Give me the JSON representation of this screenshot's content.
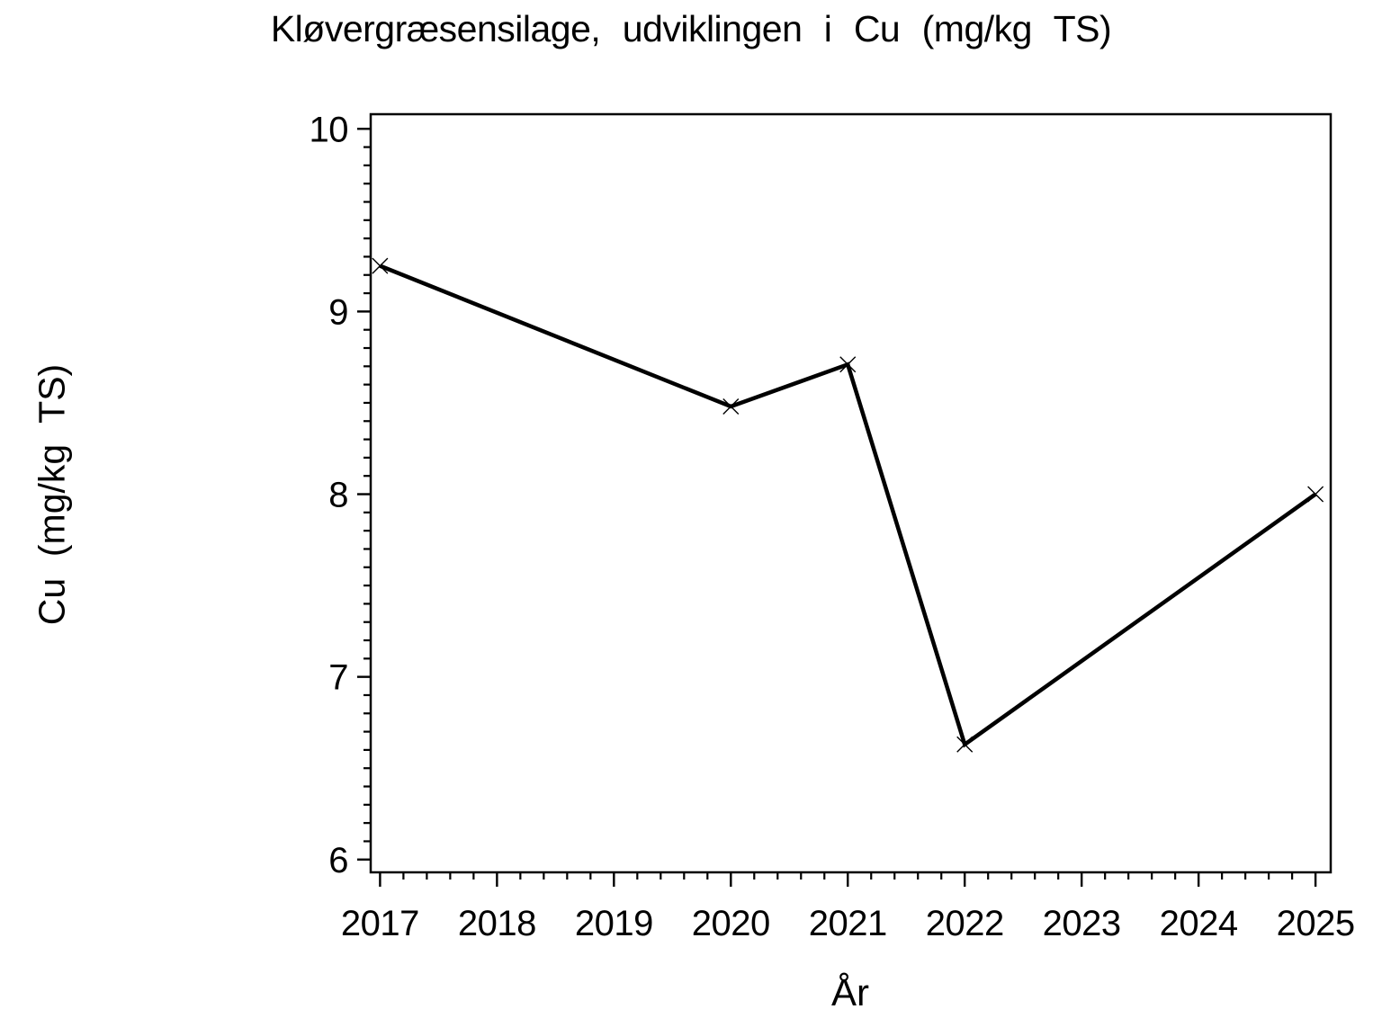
{
  "chart_data": {
    "type": "line",
    "title": "Kløvergræsensilage, udviklingen i Cu (mg/kg TS)",
    "xlabel": "År",
    "ylabel": "Cu (mg/kg TS)",
    "series": [
      {
        "name": "Cu",
        "x": [
          2017,
          2020,
          2021,
          2022,
          2025
        ],
        "y": [
          9.25,
          8.48,
          8.71,
          6.63,
          8.0
        ]
      }
    ],
    "x_ticks": [
      2017,
      2018,
      2019,
      2020,
      2021,
      2022,
      2023,
      2024,
      2025
    ],
    "y_ticks": [
      6,
      7,
      8,
      9,
      10
    ],
    "x_minor_step": 0.2,
    "y_minor_step": 0.1,
    "xlim": [
      2016.92,
      2025.13
    ],
    "ylim": [
      5.93,
      10.08
    ],
    "marker": "x",
    "grid": false,
    "legend": null,
    "line_color": "#000000",
    "background_color": "#ffffff"
  }
}
